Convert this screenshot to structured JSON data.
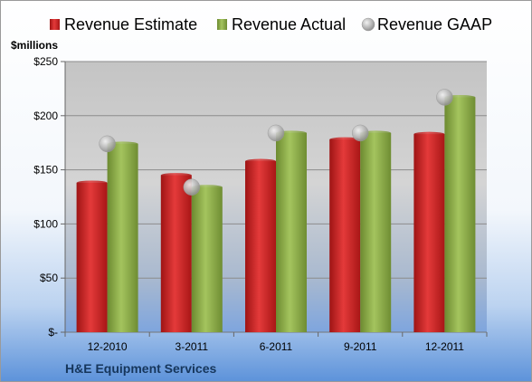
{
  "chart_data": {
    "type": "bar",
    "title": "H&E Equipment Services",
    "ylabel": "$millions",
    "xlabel": "",
    "categories": [
      "12-2010",
      "3-2011",
      "6-2011",
      "9-2011",
      "12-2011"
    ],
    "series": [
      {
        "name": "Revenue Estimate",
        "type": "bar",
        "color": "#cc1f1f",
        "values": [
          138,
          145,
          158,
          178,
          183
        ]
      },
      {
        "name": "Revenue Actual",
        "type": "bar",
        "color": "#8fb04a",
        "values": [
          174,
          134,
          184,
          184,
          217
        ]
      },
      {
        "name": "Revenue GAAP",
        "type": "marker",
        "color": "#b8b8b8",
        "values": [
          174,
          134,
          184,
          184,
          217
        ]
      }
    ],
    "ylim": [
      0,
      250
    ],
    "yticks": [
      0,
      50,
      100,
      150,
      200,
      250
    ],
    "ytick_labels": [
      "$-",
      "$50",
      "$100",
      "$150",
      "$200",
      "$250"
    ],
    "grid": true,
    "legend_position": "top"
  }
}
